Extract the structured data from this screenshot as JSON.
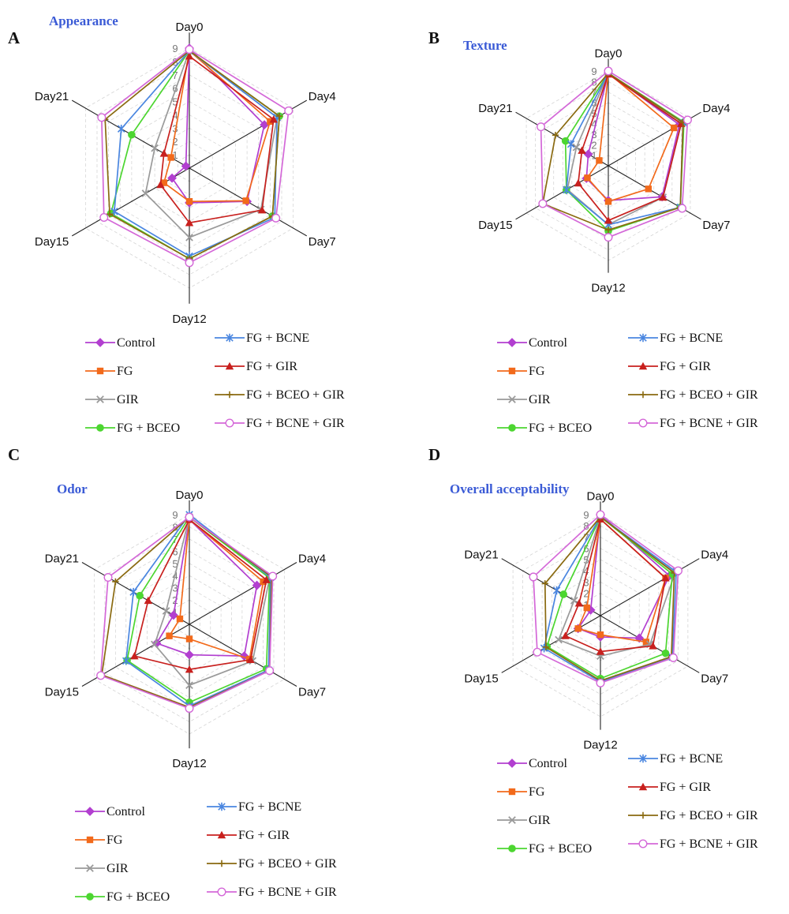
{
  "figure": {
    "legend": [
      {
        "name": "Control",
        "color": "#b23fd0",
        "marker": "diamond"
      },
      {
        "name": "FG",
        "color": "#f26a1b",
        "marker": "square"
      },
      {
        "name": "GIR",
        "color": "#9a9a9a",
        "marker": "x"
      },
      {
        "name": "FG + BCEO",
        "color": "#4cd630",
        "marker": "circle"
      },
      {
        "name": "FG + BCNE",
        "color": "#4a86e0",
        "marker": "star"
      },
      {
        "name": "FG + GIR",
        "color": "#c8201e",
        "marker": "triangle"
      },
      {
        "name": "FG + BCEO + GIR",
        "color": "#8a6a10",
        "marker": "plus"
      },
      {
        "name": "FG + BCNE + GIR",
        "color": "#d468d8",
        "marker": "opencircle"
      }
    ]
  },
  "chart_data": [
    {
      "type": "radar",
      "panel": "A",
      "title": "Appearance",
      "axes": [
        "Day0",
        "Day4",
        "Day7",
        "Day12",
        "Day15",
        "Day21"
      ],
      "ticks": [
        "1",
        "2",
        "3",
        "4",
        "5",
        "6",
        "7",
        "8",
        "9"
      ],
      "rmax": 9,
      "series": [
        {
          "name": "Control",
          "values": [
            9,
            6.5,
            5,
            2.6,
            1.5,
            0.3
          ]
        },
        {
          "name": "FG",
          "values": [
            8.8,
            7,
            4.9,
            2.5,
            2.2,
            1.6
          ]
        },
        {
          "name": "GIR",
          "values": [
            8.8,
            7.6,
            6.2,
            5.2,
            3.8,
            3
          ]
        },
        {
          "name": "FG + BCEO",
          "values": [
            8.8,
            7.8,
            7.2,
            6.8,
            6.8,
            5
          ]
        },
        {
          "name": "FG + BCNE",
          "values": [
            8.8,
            7.6,
            7.4,
            6.6,
            6.5,
            5.9
          ]
        },
        {
          "name": "FG + GIR",
          "values": [
            8.4,
            7.3,
            6.3,
            4.1,
            2.5,
            2.2
          ]
        },
        {
          "name": "FG + BCEO + GIR",
          "values": [
            8.8,
            7.8,
            7.2,
            6.8,
            6.9,
            7.3
          ]
        },
        {
          "name": "FG + BCNE + GIR",
          "values": [
            8.9,
            8.6,
            7.5,
            7.1,
            7.4,
            7.6
          ]
        }
      ]
    },
    {
      "type": "radar",
      "panel": "B",
      "title": "Texture",
      "axes": [
        "Day0",
        "Day4",
        "Day7",
        "Day12",
        "Day15",
        "Day21"
      ],
      "ticks": [
        "1",
        "2",
        "3",
        "4",
        "5",
        "6",
        "7",
        "8",
        "9"
      ],
      "rmax": 9,
      "series": [
        {
          "name": "Control",
          "values": [
            8.8,
            7.8,
            5.9,
            3.3,
            2.4,
            2.2
          ]
        },
        {
          "name": "FG",
          "values": [
            8.8,
            7.2,
            4.4,
            3.4,
            2.3,
            1
          ]
        },
        {
          "name": "GIR",
          "values": [
            8.8,
            8,
            6,
            5.6,
            4.5,
            3.5
          ]
        },
        {
          "name": "FG + BCEO",
          "values": [
            8.8,
            8.3,
            7.9,
            6.2,
            4.6,
            4.7
          ]
        },
        {
          "name": "FG + BCNE",
          "values": [
            8.8,
            8.2,
            7.9,
            5.6,
            4.6,
            4.1
          ]
        },
        {
          "name": "FG + GIR",
          "values": [
            8.7,
            8,
            6,
            5.2,
            3.3,
            2.9
          ]
        },
        {
          "name": "FG + BCEO + GIR",
          "values": [
            8.8,
            8.2,
            7.9,
            6.1,
            7.2,
            5.8
          ]
        },
        {
          "name": "FG + BCNE + GIR",
          "values": [
            9,
            8.7,
            8.1,
            6.8,
            7.2,
            7.4
          ]
        }
      ]
    },
    {
      "type": "radar",
      "panel": "C",
      "title": "Odor",
      "axes": [
        "Day0",
        "Day4",
        "Day7",
        "Day12",
        "Day15",
        "Day21"
      ],
      "ticks": [
        "1",
        "2",
        "3",
        "4",
        "5",
        "6",
        "7",
        "8",
        "9"
      ],
      "rmax": 9,
      "series": [
        {
          "name": "Control",
          "values": [
            8.6,
            6.4,
            5.2,
            2.5,
            3.1,
            1.5
          ]
        },
        {
          "name": "FG",
          "values": [
            8.6,
            7,
            5.7,
            1.2,
            1.9,
            0.9
          ]
        },
        {
          "name": "GIR",
          "values": [
            8.8,
            7.6,
            6,
            5,
            3.3,
            2.2
          ]
        },
        {
          "name": "FG + BCEO",
          "values": [
            8.8,
            7.6,
            7.3,
            6.4,
            5.9,
            4.7
          ]
        },
        {
          "name": "FG + BCNE",
          "values": [
            9,
            7.7,
            7.5,
            6.7,
            6,
            5.3
          ]
        },
        {
          "name": "FG + GIR",
          "values": [
            8.6,
            7.3,
            5.8,
            3.7,
            5.2,
            3.9
          ]
        },
        {
          "name": "FG + BCEO + GIR",
          "values": [
            8.8,
            7.8,
            7.6,
            6.8,
            8.3,
            7
          ]
        },
        {
          "name": "FG + BCNE + GIR",
          "values": [
            8.8,
            7.9,
            7.6,
            6.9,
            8.4,
            7.7
          ]
        }
      ]
    },
    {
      "type": "radar",
      "panel": "D",
      "title": "Overall acceptability",
      "axes": [
        "Day0",
        "Day4",
        "Day7",
        "Day12",
        "Day15",
        "Day21"
      ],
      "ticks": [
        "1",
        "2",
        "3",
        "4",
        "5",
        "6",
        "7",
        "8",
        "9"
      ],
      "rmax": 9,
      "series": [
        {
          "name": "Control",
          "values": [
            9,
            7.1,
            4,
            1.9,
            2.3,
            1
          ]
        },
        {
          "name": "FG",
          "values": [
            8.6,
            6.7,
            4.7,
            1.7,
            2.3,
            1.4
          ]
        },
        {
          "name": "GIR",
          "values": [
            8.8,
            7.7,
            5.1,
            3.6,
            4.3,
            2.7
          ]
        },
        {
          "name": "FG + BCEO",
          "values": [
            8.8,
            7.4,
            6.7,
            5.6,
            5.5,
            3.8
          ]
        },
        {
          "name": "FG + BCNE",
          "values": [
            8.8,
            7.8,
            7.4,
            5.9,
            5.8,
            4.5
          ]
        },
        {
          "name": "FG + GIR",
          "values": [
            8.6,
            6.7,
            5.4,
            3.2,
            3.6,
            2.2
          ]
        },
        {
          "name": "FG + BCEO + GIR",
          "values": [
            8.8,
            7.6,
            7.3,
            5.8,
            5.6,
            5.7
          ]
        },
        {
          "name": "FG + BCNE + GIR",
          "values": [
            9,
            8,
            7.5,
            6,
            6.5,
            6.9
          ]
        }
      ]
    }
  ]
}
